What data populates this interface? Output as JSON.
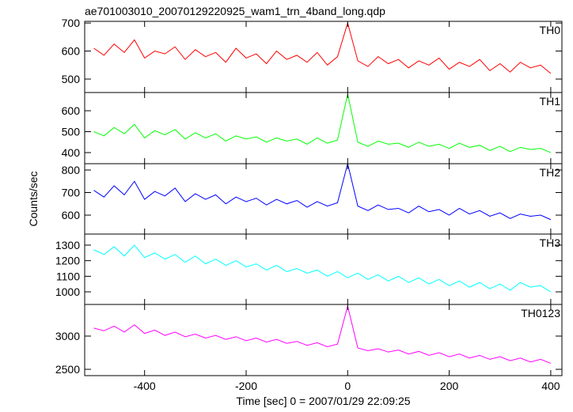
{
  "chart_data": [
    {
      "type": "line",
      "title": "ae701003010_20070129220925_wam1_trn_4band_long.qdp",
      "x": [
        -500,
        -480,
        -460,
        -440,
        -420,
        -400,
        -380,
        -360,
        -340,
        -320,
        -300,
        -280,
        -260,
        -240,
        -220,
        -200,
        -180,
        -160,
        -140,
        -120,
        -100,
        -80,
        -60,
        -40,
        -20,
        0,
        20,
        40,
        60,
        80,
        100,
        120,
        140,
        160,
        180,
        200,
        220,
        240,
        260,
        280,
        300,
        320,
        340,
        360,
        380,
        400
      ],
      "series": [
        {
          "name": "TH0",
          "color": "#ff0000",
          "values": [
            610,
            585,
            625,
            595,
            640,
            575,
            600,
            590,
            615,
            570,
            605,
            580,
            595,
            560,
            610,
            575,
            590,
            555,
            600,
            570,
            585,
            560,
            595,
            550,
            580,
            700,
            565,
            545,
            580,
            555,
            570,
            540,
            565,
            550,
            575,
            535,
            560,
            545,
            570,
            530,
            555,
            525,
            560,
            540,
            550,
            520
          ]
        }
      ],
      "xlim": [
        -518,
        422
      ],
      "ylim": [
        452,
        706
      ],
      "yticks": [
        500,
        600,
        700
      ]
    },
    {
      "type": "line",
      "x": [
        -500,
        -480,
        -460,
        -440,
        -420,
        -400,
        -380,
        -360,
        -340,
        -320,
        -300,
        -280,
        -260,
        -240,
        -220,
        -200,
        -180,
        -160,
        -140,
        -120,
        -100,
        -80,
        -60,
        -40,
        -20,
        0,
        20,
        40,
        60,
        80,
        100,
        120,
        140,
        160,
        180,
        200,
        220,
        240,
        260,
        280,
        300,
        320,
        340,
        360,
        380,
        400
      ],
      "series": [
        {
          "name": "TH1",
          "color": "#00ff00",
          "values": [
            500,
            480,
            520,
            490,
            535,
            470,
            505,
            485,
            510,
            465,
            495,
            470,
            490,
            455,
            480,
            465,
            475,
            450,
            470,
            455,
            465,
            440,
            470,
            445,
            460,
            680,
            450,
            430,
            455,
            440,
            445,
            425,
            450,
            430,
            440,
            420,
            445,
            425,
            435,
            410,
            430,
            405,
            425,
            415,
            420,
            400
          ]
        }
      ],
      "xlim": [
        -518,
        422
      ],
      "ylim": [
        347,
        687
      ],
      "yticks": [
        400,
        500,
        600
      ]
    },
    {
      "type": "line",
      "ylabel": "Counts/sec",
      "x": [
        -500,
        -480,
        -460,
        -440,
        -420,
        -400,
        -380,
        -360,
        -340,
        -320,
        -300,
        -280,
        -260,
        -240,
        -220,
        -200,
        -180,
        -160,
        -140,
        -120,
        -100,
        -80,
        -60,
        -40,
        -20,
        0,
        20,
        40,
        60,
        80,
        100,
        120,
        140,
        160,
        180,
        200,
        220,
        240,
        260,
        280,
        300,
        320,
        340,
        360,
        380,
        400
      ],
      "series": [
        {
          "name": "TH2",
          "color": "#0000ff",
          "values": [
            710,
            680,
            730,
            690,
            750,
            670,
            705,
            685,
            720,
            660,
            695,
            670,
            690,
            650,
            680,
            660,
            675,
            645,
            670,
            650,
            665,
            635,
            660,
            640,
            655,
            828,
            640,
            620,
            645,
            625,
            630,
            610,
            640,
            615,
            625,
            600,
            630,
            605,
            620,
            595,
            610,
            585,
            605,
            595,
            600,
            580
          ]
        }
      ],
      "xlim": [
        -518,
        422
      ],
      "ylim": [
        516,
        828
      ],
      "yticks": [
        600,
        700,
        800
      ]
    },
    {
      "type": "line",
      "x": [
        -500,
        -480,
        -460,
        -440,
        -420,
        -400,
        -380,
        -360,
        -340,
        -320,
        -300,
        -280,
        -260,
        -240,
        -220,
        -200,
        -180,
        -160,
        -140,
        -120,
        -100,
        -80,
        -60,
        -40,
        -20,
        0,
        20,
        40,
        60,
        80,
        100,
        120,
        140,
        160,
        180,
        200,
        220,
        240,
        260,
        280,
        300,
        320,
        340,
        360,
        380,
        400
      ],
      "series": [
        {
          "name": "TH3",
          "color": "#00ffff",
          "values": [
            1270,
            1240,
            1290,
            1230,
            1300,
            1220,
            1250,
            1210,
            1240,
            1190,
            1230,
            1180,
            1210,
            1170,
            1200,
            1160,
            1180,
            1140,
            1170,
            1130,
            1150,
            1120,
            1140,
            1100,
            1130,
            1090,
            1120,
            1080,
            1110,
            1070,
            1100,
            1060,
            1090,
            1050,
            1080,
            1040,
            1070,
            1030,
            1060,
            1020,
            1050,
            1010,
            1060,
            1030,
            1040,
            1000
          ]
        }
      ],
      "xlim": [
        -518,
        422
      ],
      "ylim": [
        919,
        1371
      ],
      "yticks": [
        1000,
        1100,
        1200,
        1300
      ]
    },
    {
      "type": "line",
      "xlabel": "Time [sec] 0 = 2007/01/29 22:09:25",
      "x": [
        -500,
        -480,
        -460,
        -440,
        -420,
        -400,
        -380,
        -360,
        -340,
        -320,
        -300,
        -280,
        -260,
        -240,
        -220,
        -200,
        -180,
        -160,
        -140,
        -120,
        -100,
        -80,
        -60,
        -40,
        -20,
        0,
        20,
        40,
        60,
        80,
        100,
        120,
        140,
        160,
        180,
        200,
        220,
        240,
        260,
        280,
        300,
        320,
        340,
        360,
        380,
        400
      ],
      "series": [
        {
          "name": "TH0123",
          "color": "#ff00ff",
          "values": [
            3120,
            3080,
            3150,
            3060,
            3170,
            3040,
            3090,
            3010,
            3060,
            2990,
            3030,
            2970,
            3010,
            2950,
            2990,
            2930,
            2970,
            2910,
            2950,
            2890,
            2920,
            2860,
            2900,
            2840,
            2880,
            3450,
            2820,
            2780,
            2810,
            2760,
            2790,
            2730,
            2770,
            2710,
            2750,
            2690,
            2730,
            2670,
            2710,
            2650,
            2690,
            2630,
            2670,
            2610,
            2650,
            2590
          ]
        }
      ],
      "xlim": [
        -518,
        422
      ],
      "ylim": [
        2405,
        3476
      ],
      "yticks": [
        2500,
        3000
      ],
      "xticks": [
        -400,
        -200,
        0,
        200,
        400
      ]
    }
  ]
}
